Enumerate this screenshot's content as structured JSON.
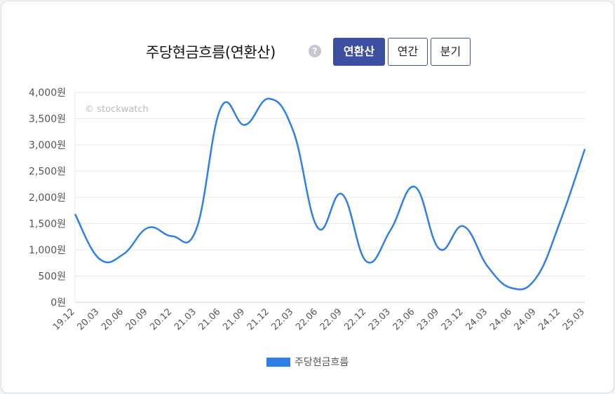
{
  "header": {
    "title": "주당현금흐름(연환산)",
    "help_icon_text": "?",
    "tabs": [
      {
        "label": "연환산",
        "active": true
      },
      {
        "label": "연간",
        "active": false
      },
      {
        "label": "분기",
        "active": false
      }
    ]
  },
  "watermark": "© stockwatch",
  "colors": {
    "line": "#2f80e6",
    "accent": "#3d4fa0",
    "grid": "#e6e8ec"
  },
  "chart_data": {
    "type": "line",
    "title": "주당현금흐름(연환산)",
    "xlabel": "",
    "ylabel": "",
    "ylim": [
      0,
      4000
    ],
    "yticks": [
      0,
      500,
      1000,
      1500,
      2000,
      2500,
      3000,
      3500,
      4000
    ],
    "ytick_labels": [
      "0원",
      "500원",
      "1,000원",
      "1,500원",
      "2,000원",
      "2,500원",
      "3,000원",
      "3,500원",
      "4,000원"
    ],
    "categories": [
      "19.12",
      "20.03",
      "20.06",
      "20.09",
      "20.12",
      "21.03",
      "21.06",
      "21.09",
      "21.12",
      "22.03",
      "22.06",
      "22.09",
      "22.12",
      "23.03",
      "23.06",
      "23.09",
      "23.12",
      "24.03",
      "24.06",
      "24.09",
      "24.12",
      "25.03"
    ],
    "series": [
      {
        "name": "주당현금흐름",
        "color": "#2f80e6",
        "values": [
          1680,
          830,
          920,
          1420,
          1260,
          1400,
          3700,
          3380,
          3880,
          3250,
          1420,
          2060,
          780,
          1380,
          2200,
          1020,
          1450,
          680,
          270,
          470,
          1560,
          2920
        ]
      }
    ],
    "legend": "bottom",
    "grid": true
  }
}
